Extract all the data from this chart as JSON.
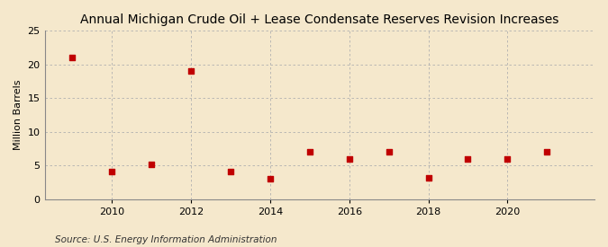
{
  "title": "Annual Michigan Crude Oil + Lease Condensate Reserves Revision Increases",
  "ylabel": "Million Barrels",
  "source": "Source: U.S. Energy Information Administration",
  "background_color": "#f5e8cc",
  "plot_background_color": "#f5e8cc",
  "years": [
    2009,
    2010,
    2011,
    2012,
    2013,
    2014,
    2015,
    2016,
    2017,
    2018,
    2019,
    2020,
    2021
  ],
  "values": [
    21.0,
    4.1,
    5.1,
    19.0,
    4.1,
    3.0,
    7.0,
    6.0,
    7.0,
    3.1,
    6.0,
    6.0,
    7.0
  ],
  "marker_color": "#c00000",
  "marker_size": 16,
  "xlim": [
    2008.3,
    2022.2
  ],
  "ylim": [
    0,
    25
  ],
  "yticks": [
    0,
    5,
    10,
    15,
    20,
    25
  ],
  "xticks": [
    2010,
    2012,
    2014,
    2016,
    2018,
    2020
  ],
  "grid_color": "#b0b0b0",
  "title_fontsize": 10,
  "ylabel_fontsize": 8,
  "source_fontsize": 7.5,
  "tick_fontsize": 8
}
